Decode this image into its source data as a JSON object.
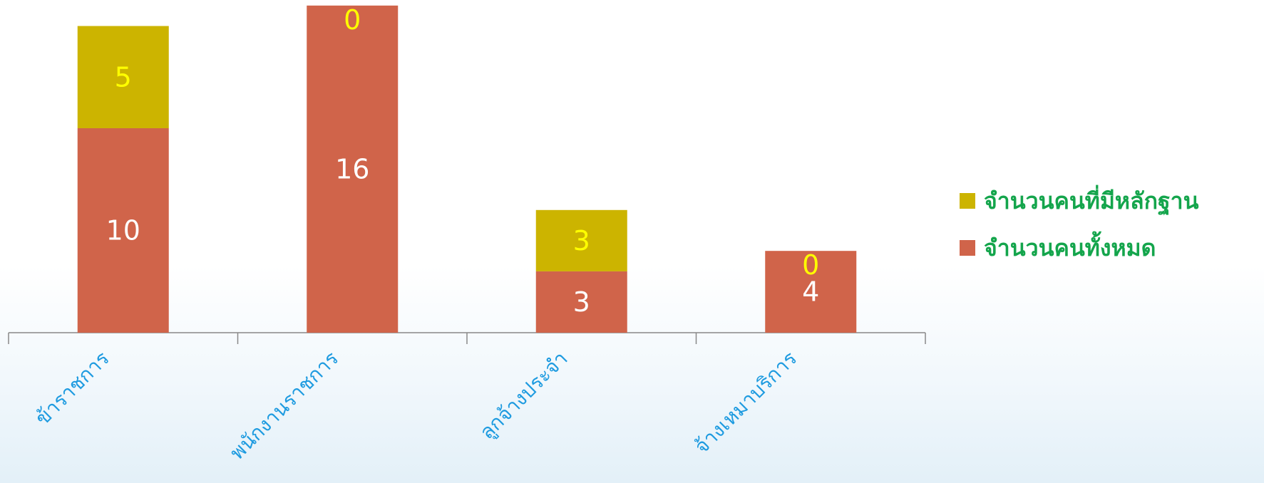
{
  "chart_data": {
    "type": "bar",
    "stacked": true,
    "categories": [
      "ข้าราชการ",
      "พนักงานราชการ",
      "ลูกจ้างประจำ",
      "จ้างเหมาบริการ"
    ],
    "series": [
      {
        "name": "จำนวนคนทั้งหมด",
        "values": [
          10,
          16,
          3,
          4
        ],
        "color": "#d0644a",
        "label_color": "#ffffff"
      },
      {
        "name": "จำนวนคนที่มีหลักฐาน",
        "values": [
          5,
          0,
          3,
          0
        ],
        "color": "#ccb400",
        "label_color": "#ffff00"
      }
    ],
    "legend_order": [
      "จำนวนคนที่มีหลักฐาน",
      "จำนวนคนทั้งหมด"
    ],
    "legend_position": "right",
    "category_label_color": "#1e9be0",
    "legend_text_color": "#14a54c",
    "axis_color": "#888888",
    "ylim": [
      0,
      16
    ],
    "grid": false,
    "title": "",
    "xlabel": "",
    "ylabel": ""
  }
}
